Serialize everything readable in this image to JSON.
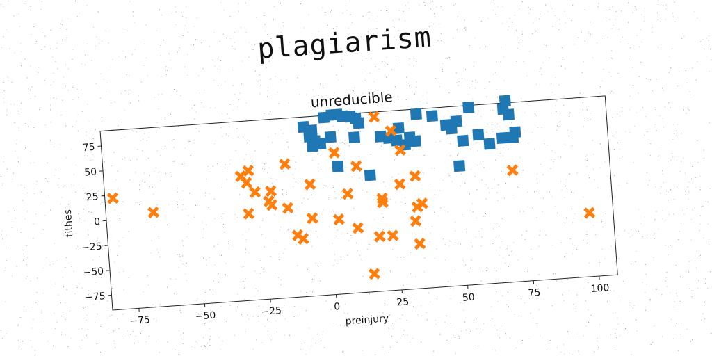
{
  "page": {
    "title": "plagiarism"
  },
  "colors": {
    "series_1": "#1f77b4",
    "series_2": "#ff7f0e",
    "axis": "#222222",
    "background": "#ffffff"
  },
  "chart_data": {
    "type": "scatter",
    "title": "unreducible",
    "xlabel": "preinjury",
    "ylabel": "tithes",
    "xlim": [
      -85,
      107
    ],
    "ylim": [
      -90,
      90
    ],
    "xticks": [
      -75,
      -50,
      -25,
      0,
      25,
      50,
      75,
      100
    ],
    "yticks": [
      -75,
      -50,
      -25,
      0,
      25,
      50,
      75
    ],
    "xtick_labels": [
      "−75",
      "−50",
      "−25",
      "0",
      "25",
      "50",
      "75",
      "100"
    ],
    "ytick_labels": [
      "−75",
      "−50",
      "−25",
      "0",
      "25",
      "50",
      "75"
    ],
    "grid": false,
    "rotation_deg": -4,
    "series": [
      {
        "marker": "square",
        "color": "#1f77b4",
        "points": [
          [
            -8,
            80
          ],
          [
            -5,
            76
          ],
          [
            -6,
            70
          ],
          [
            -4,
            65
          ],
          [
            -5,
            60
          ],
          [
            -2,
            62
          ],
          [
            0,
            88
          ],
          [
            3,
            90
          ],
          [
            5,
            90
          ],
          [
            7,
            88
          ],
          [
            10,
            87
          ],
          [
            12,
            85
          ],
          [
            13,
            80
          ],
          [
            2,
            68
          ],
          [
            11,
            66
          ],
          [
            4,
            38
          ],
          [
            16,
            27
          ],
          [
            21,
            65
          ],
          [
            24,
            63
          ],
          [
            27,
            60
          ],
          [
            28,
            72
          ],
          [
            30,
            55
          ],
          [
            32,
            62
          ],
          [
            34,
            58
          ],
          [
            35,
            85
          ],
          [
            41,
            82
          ],
          [
            46,
            72
          ],
          [
            48,
            68
          ],
          [
            50,
            75
          ],
          [
            52,
            55
          ],
          [
            55,
            88
          ],
          [
            58,
            60
          ],
          [
            62,
            50
          ],
          [
            67,
            55
          ],
          [
            68,
            84
          ],
          [
            69,
            92
          ],
          [
            70,
            78
          ],
          [
            71,
            55
          ],
          [
            72,
            60
          ],
          [
            50,
            30
          ]
        ]
      },
      {
        "marker": "x",
        "color": "#ff7f0e",
        "points": [
          [
            -82,
            22
          ],
          [
            -67,
            5
          ],
          [
            -33,
            35
          ],
          [
            -30,
            40
          ],
          [
            -31,
            28
          ],
          [
            -28,
            18
          ],
          [
            -22,
            18
          ],
          [
            -23,
            8
          ],
          [
            -22,
            4
          ],
          [
            -31,
            -3
          ],
          [
            -16,
            44
          ],
          [
            -16,
            0
          ],
          [
            -7,
            22
          ],
          [
            -7,
            -12
          ],
          [
            -13,
            -28
          ],
          [
            -11,
            -32
          ],
          [
            3,
            -15
          ],
          [
            7,
            10
          ],
          [
            3,
            52
          ],
          [
            11,
            37
          ],
          [
            10,
            -25
          ],
          [
            19,
            85
          ],
          [
            25,
            70
          ],
          [
            28,
            50
          ],
          [
            27,
            16
          ],
          [
            33,
            23
          ],
          [
            20,
            3
          ],
          [
            20,
            -1
          ],
          [
            18,
            -35
          ],
          [
            23,
            -35
          ],
          [
            32,
            -22
          ],
          [
            33,
            -8
          ],
          [
            35,
            -5
          ],
          [
            33,
            -45
          ],
          [
            15,
            -72
          ],
          [
            70,
            22
          ],
          [
            98,
            -26
          ]
        ]
      }
    ]
  }
}
